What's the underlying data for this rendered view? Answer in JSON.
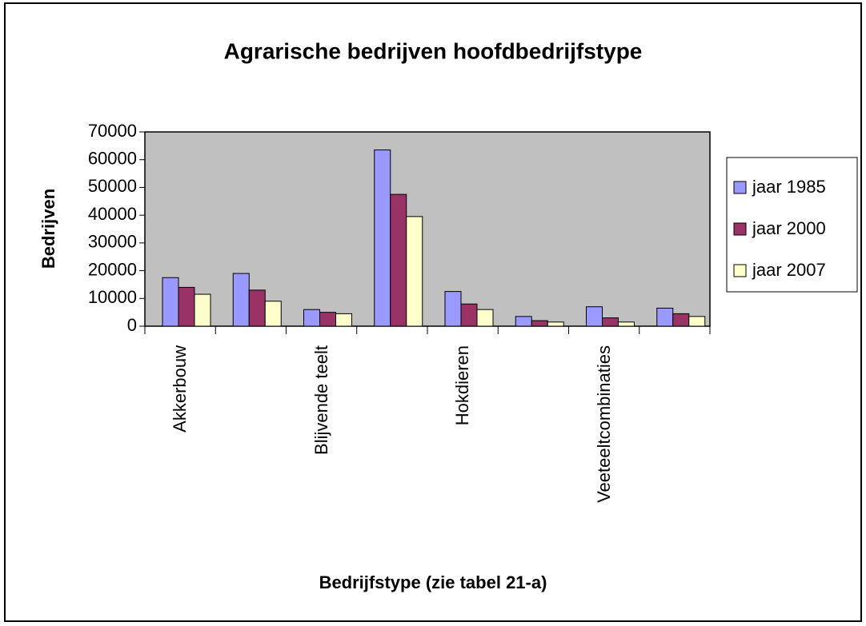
{
  "chart_data": {
    "type": "bar",
    "title": "Agrarische bedrijven hoofdbedrijfstype",
    "x_label": "Bedrijfstype (zie tabel 21-a)",
    "y_label": "Bedrijven",
    "categories": [
      "Akkerbouw",
      null,
      "Blijvende teelt",
      null,
      "Hokdieren",
      null,
      "Veeteeltcombinaties",
      null
    ],
    "series": [
      {
        "name": "jaar 1985",
        "color": "#9999ff",
        "values": [
          17500,
          19000,
          6000,
          63500,
          12500,
          3500,
          7000,
          6500
        ]
      },
      {
        "name": "jaar 2000",
        "color": "#993366",
        "values": [
          14000,
          13000,
          5000,
          47500,
          8000,
          2000,
          3000,
          4500
        ]
      },
      {
        "name": "jaar 2007",
        "color": "#ffffcc",
        "values": [
          11500,
          9000,
          4500,
          39500,
          6000,
          1500,
          1500,
          3500
        ]
      }
    ],
    "ylim": [
      0,
      70000
    ],
    "yticks": [
      0,
      10000,
      20000,
      30000,
      40000,
      50000,
      60000,
      70000
    ],
    "grid": false,
    "legend": "right",
    "plot_background": "#c0c0c0"
  }
}
